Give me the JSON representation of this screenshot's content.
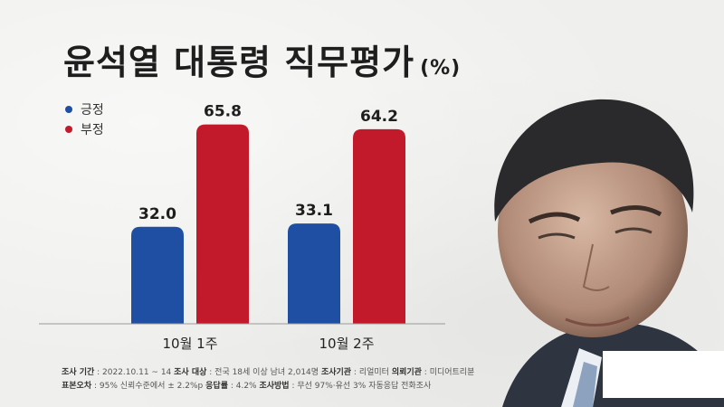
{
  "title": {
    "main": "윤석열 대통령 직무평가",
    "unit": "(%)"
  },
  "colors": {
    "positive": "#1f4fa3",
    "negative": "#c21a2b"
  },
  "chart_data": {
    "type": "bar",
    "categories": [
      "10월 1주",
      "10월 2주"
    ],
    "series": [
      {
        "name": "긍정",
        "values": [
          32.0,
          33.1
        ],
        "labels": [
          "32.0",
          "33.1"
        ]
      },
      {
        "name": "부정",
        "values": [
          65.8,
          64.2
        ],
        "labels": [
          "65.8",
          "64.2"
        ]
      }
    ],
    "ylim": [
      0,
      70
    ]
  },
  "footer": {
    "line1": [
      {
        "label": "조사 기간",
        "value": " : 2022.10.11 ~ 14   "
      },
      {
        "label": "조사 대상",
        "value": " : 전국 18세 이상 남녀 2,014명   "
      },
      {
        "label": "조사기관",
        "value": " : 리얼미터   "
      },
      {
        "label": "의뢰기관",
        "value": " : 미디어트리뷴"
      }
    ],
    "line2": [
      {
        "label": "표본오차",
        "value": " : 95% 신뢰수준에서 ± 2.2%p   "
      },
      {
        "label": "응답률",
        "value": " : 4.2%   "
      },
      {
        "label": "조사방법",
        "value": " : 무선 97%·유선 3% 자동응답 전화조사"
      }
    ]
  }
}
